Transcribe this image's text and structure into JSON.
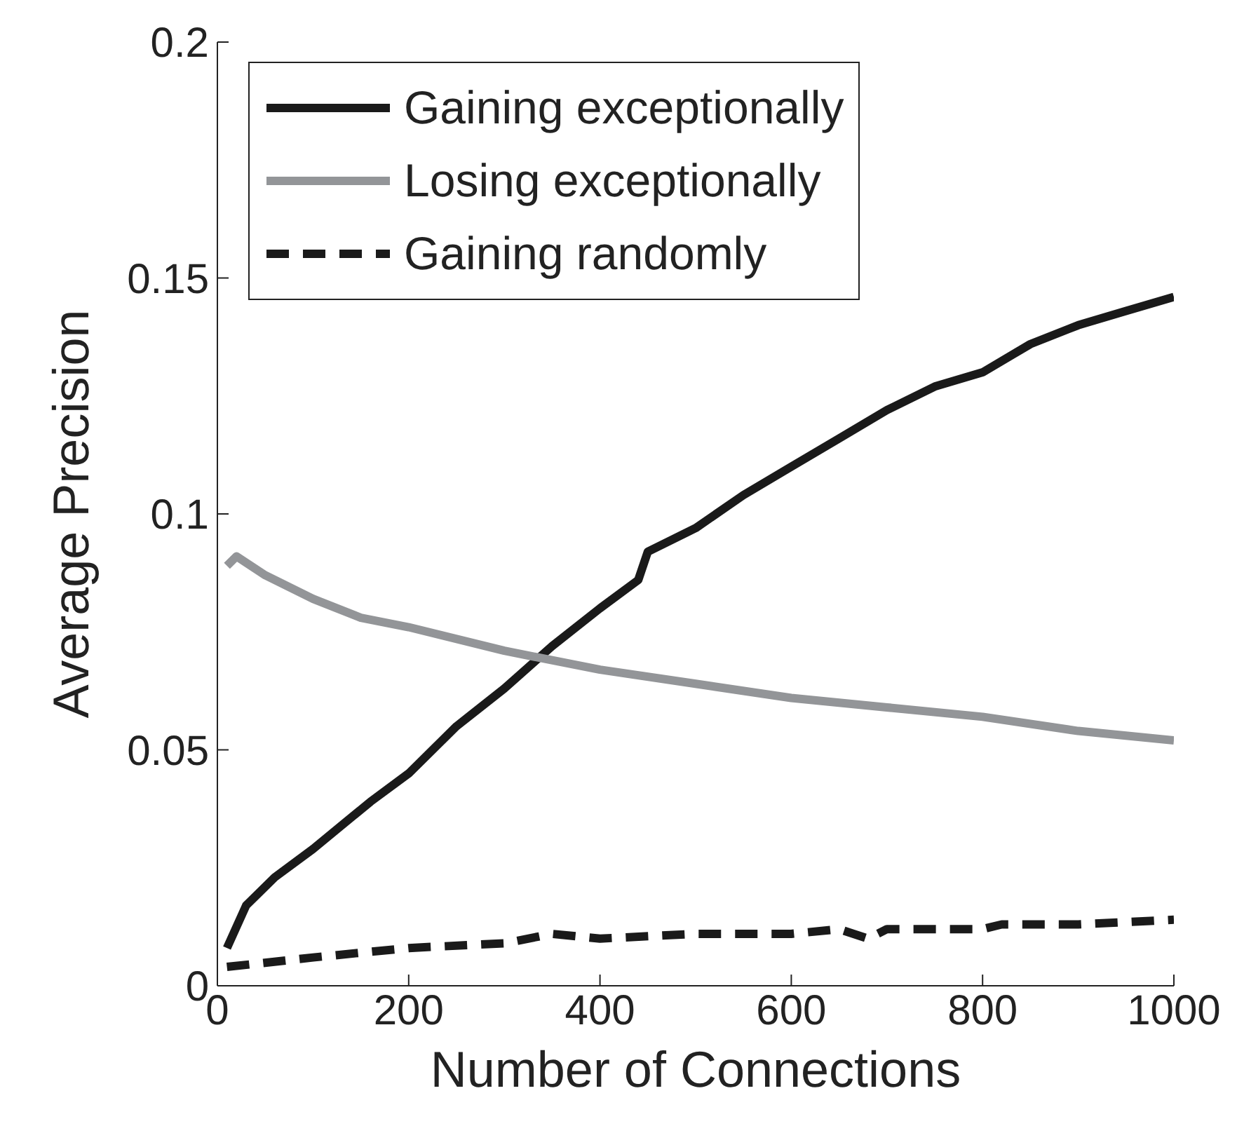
{
  "chart_data": {
    "type": "line",
    "xlabel": "Number of Connections",
    "ylabel": "Average Precision",
    "xlim": [
      0,
      1000
    ],
    "xticks": [
      0,
      200,
      400,
      600,
      800,
      1000
    ],
    "ylim": [
      0,
      0.2
    ],
    "yticks": [
      0,
      0.05,
      0.1,
      0.15,
      0.2
    ],
    "legend": "top left",
    "marker": "none",
    "series": [
      {
        "name": "Gaining exceptionally",
        "color": "#1a1a1a",
        "line_style": "solid",
        "x": [
          10,
          30,
          60,
          100,
          130,
          160,
          200,
          250,
          300,
          350,
          400,
          440,
          450,
          500,
          550,
          600,
          650,
          700,
          750,
          800,
          850,
          900,
          950,
          1000
        ],
        "values": [
          0.008,
          0.017,
          0.023,
          0.029,
          0.034,
          0.039,
          0.045,
          0.055,
          0.063,
          0.072,
          0.08,
          0.086,
          0.092,
          0.097,
          0.104,
          0.11,
          0.116,
          0.122,
          0.127,
          0.13,
          0.136,
          0.14,
          0.143,
          0.146
        ]
      },
      {
        "name": "Losing exceptionally",
        "color": "#939598",
        "line_style": "solid",
        "x": [
          10,
          20,
          50,
          100,
          150,
          200,
          300,
          400,
          500,
          600,
          700,
          800,
          900,
          1000
        ],
        "values": [
          0.089,
          0.091,
          0.087,
          0.082,
          0.078,
          0.076,
          0.071,
          0.067,
          0.064,
          0.061,
          0.059,
          0.057,
          0.054,
          0.052
        ]
      },
      {
        "name": "Gaining randomly",
        "color": "#1a1a1a",
        "line_style": "dashed",
        "x": [
          10,
          100,
          200,
          300,
          350,
          400,
          500,
          600,
          650,
          680,
          700,
          800,
          820,
          900,
          1000
        ],
        "values": [
          0.004,
          0.006,
          0.008,
          0.009,
          0.011,
          0.01,
          0.011,
          0.011,
          0.012,
          0.01,
          0.012,
          0.012,
          0.013,
          0.013,
          0.014
        ]
      }
    ]
  }
}
